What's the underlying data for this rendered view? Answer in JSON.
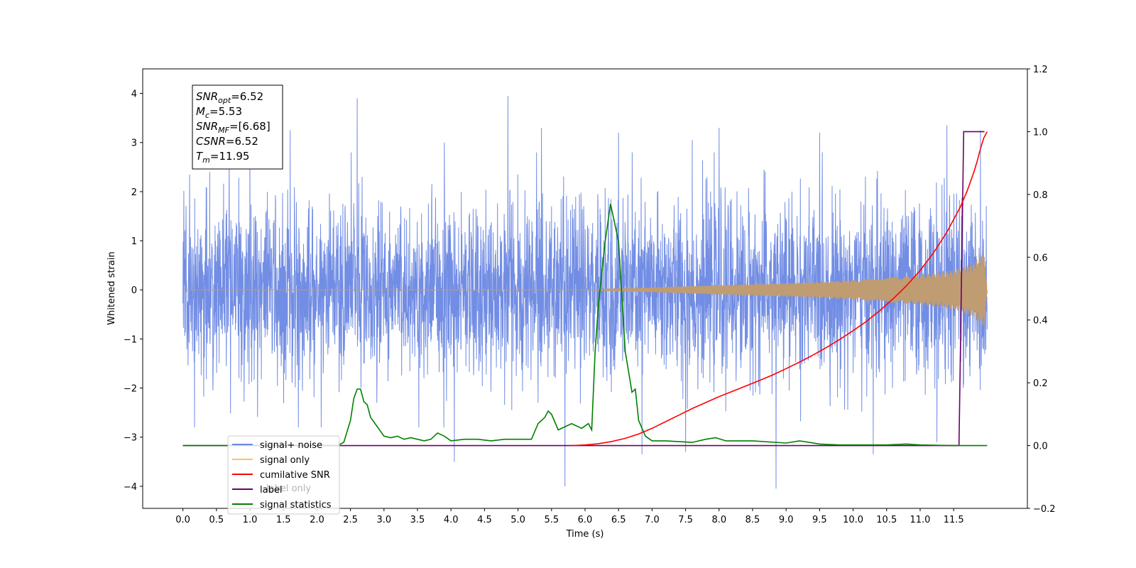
{
  "chart_data": {
    "type": "line",
    "xlabel": "Time (s)",
    "ylabel": "Whitened strain",
    "xlim": [
      -0.6,
      12.6
    ],
    "ylim": [
      -4.45,
      4.5
    ],
    "y2lim": [
      -0.2,
      1.2
    ],
    "grid": false,
    "x_ticks": [
      "0.0",
      "0.5",
      "1.0",
      "1.5",
      "2.0",
      "2.5",
      "3.0",
      "3.5",
      "4.0",
      "4.5",
      "5.0",
      "5.5",
      "6.0",
      "6.5",
      "7.0",
      "7.5",
      "8.0",
      "8.5",
      "9.0",
      "9.5",
      "10.0",
      "10.5",
      "11.0",
      "11.5"
    ],
    "y_ticks": [
      "4",
      "3",
      "2",
      "1",
      "0",
      "−1",
      "−2",
      "−3",
      "−4"
    ],
    "y2_ticks": [
      "1.2",
      "1.0",
      "0.8",
      "0.6",
      "0.4",
      "0.2",
      "0.0",
      "−0.2"
    ],
    "annotation": {
      "lines": [
        {
          "sym": "SNR",
          "sub": "opt",
          "value": "=6.52"
        },
        {
          "sym": "M",
          "sub": "c",
          "value": "=5.53"
        },
        {
          "sym": "SNR",
          "sub": "MF",
          "value": "=[6.68]"
        },
        {
          "sym": "CSNR",
          "sub": "",
          "value": "=6.52"
        },
        {
          "sym": "T",
          "sub": "m",
          "value": "=11.95"
        }
      ]
    },
    "legend": {
      "placement": "lower-left",
      "entries": [
        {
          "label": "signal+ noise",
          "color": "#6a87e3"
        },
        {
          "label": "signal only",
          "color": "#ffc35a"
        },
        {
          "label": "cumilative SNR",
          "color": "#ff0000"
        },
        {
          "label": "label",
          "color": "#6a006a"
        },
        {
          "label": "signal statistics",
          "color": "#008000"
        }
      ],
      "hidden_label": "label only"
    },
    "series": [
      {
        "name": "signal+ noise",
        "color": "#6a87e3",
        "axis": "left",
        "t_range": [
          0.0,
          12.0
        ],
        "envelope_typical": 2.3,
        "spike_points": [
          [
            0.1,
            2.35
          ],
          [
            0.4,
            2.4
          ],
          [
            1.0,
            3.1
          ],
          [
            1.6,
            3.25
          ],
          [
            2.6,
            3.9
          ],
          [
            3.9,
            3.0
          ],
          [
            4.85,
            3.95
          ],
          [
            5.35,
            3.3
          ],
          [
            6.5,
            3.2
          ],
          [
            7.6,
            3.05
          ],
          [
            8.0,
            3.3
          ],
          [
            9.5,
            3.2
          ],
          [
            11.4,
            3.35
          ],
          [
            11.9,
            3.25
          ],
          [
            4.05,
            -3.5
          ],
          [
            5.7,
            -4.0
          ],
          [
            6.85,
            -3.35
          ],
          [
            7.5,
            -3.3
          ],
          [
            8.85,
            -4.05
          ],
          [
            10.3,
            -3.35
          ],
          [
            11.25,
            -3.1
          ]
        ]
      },
      {
        "name": "signal only",
        "color": "#c09c72",
        "axis": "left",
        "amplitude_points": [
          [
            0.0,
            0.0
          ],
          [
            6.0,
            0.0
          ],
          [
            7.0,
            0.05
          ],
          [
            8.0,
            0.1
          ],
          [
            9.0,
            0.14
          ],
          [
            10.0,
            0.2
          ],
          [
            10.5,
            0.25
          ],
          [
            11.0,
            0.3
          ],
          [
            11.5,
            0.4
          ],
          [
            11.8,
            0.55
          ],
          [
            11.95,
            0.8
          ],
          [
            12.0,
            0.05
          ]
        ]
      },
      {
        "name": "cumilative SNR",
        "color": "#ff0000",
        "axis": "right",
        "x": [
          5.8,
          6.0,
          6.2,
          6.4,
          6.6,
          6.8,
          7.0,
          7.2,
          7.4,
          7.6,
          7.8,
          8.0,
          8.2,
          8.4,
          8.6,
          8.8,
          9.0,
          9.2,
          9.4,
          9.6,
          9.8,
          10.0,
          10.2,
          10.4,
          10.6,
          10.8,
          11.0,
          11.2,
          11.4,
          11.6,
          11.7,
          11.8,
          11.85,
          11.9,
          11.95,
          12.0
        ],
        "y": [
          0.0,
          0.002,
          0.006,
          0.013,
          0.023,
          0.037,
          0.055,
          0.076,
          0.097,
          0.118,
          0.137,
          0.156,
          0.173,
          0.19,
          0.207,
          0.225,
          0.245,
          0.266,
          0.288,
          0.312,
          0.338,
          0.366,
          0.396,
          0.43,
          0.468,
          0.51,
          0.558,
          0.614,
          0.68,
          0.76,
          0.81,
          0.87,
          0.905,
          0.945,
          0.98,
          1.0
        ]
      },
      {
        "name": "label",
        "color": "#6a006a",
        "axis": "right",
        "x": [
          0.0,
          11.5,
          11.58,
          11.65,
          11.9,
          11.96
        ],
        "y": [
          0.0,
          0.0,
          0.0,
          1.0,
          1.0,
          1.0
        ]
      },
      {
        "name": "signal statistics",
        "color": "#008000",
        "axis": "right",
        "x": [
          0.0,
          2.3,
          2.4,
          2.5,
          2.55,
          2.6,
          2.65,
          2.7,
          2.75,
          2.8,
          2.9,
          3.0,
          3.1,
          3.2,
          3.3,
          3.4,
          3.5,
          3.6,
          3.7,
          3.8,
          3.9,
          4.0,
          4.2,
          4.4,
          4.6,
          4.8,
          5.0,
          5.2,
          5.3,
          5.4,
          5.45,
          5.5,
          5.6,
          5.8,
          5.95,
          6.05,
          6.1,
          6.15,
          6.2,
          6.3,
          6.38,
          6.45,
          6.5,
          6.6,
          6.7,
          6.75,
          6.8,
          6.9,
          7.0,
          7.2,
          7.6,
          7.8,
          7.95,
          8.1,
          8.5,
          9.0,
          9.2,
          9.5,
          9.8,
          10.5,
          10.8,
          11.0,
          11.5,
          12.0
        ],
        "y": [
          0.0,
          0.0,
          0.01,
          0.08,
          0.15,
          0.18,
          0.18,
          0.14,
          0.13,
          0.09,
          0.06,
          0.03,
          0.025,
          0.03,
          0.02,
          0.025,
          0.02,
          0.015,
          0.02,
          0.04,
          0.03,
          0.015,
          0.02,
          0.02,
          0.015,
          0.02,
          0.02,
          0.02,
          0.07,
          0.09,
          0.11,
          0.1,
          0.05,
          0.07,
          0.055,
          0.07,
          0.05,
          0.3,
          0.45,
          0.65,
          0.77,
          0.7,
          0.65,
          0.3,
          0.17,
          0.18,
          0.08,
          0.03,
          0.015,
          0.015,
          0.01,
          0.02,
          0.025,
          0.015,
          0.015,
          0.008,
          0.015,
          0.005,
          0.002,
          0.002,
          0.005,
          0.002,
          0.0,
          0.0
        ]
      }
    ]
  }
}
